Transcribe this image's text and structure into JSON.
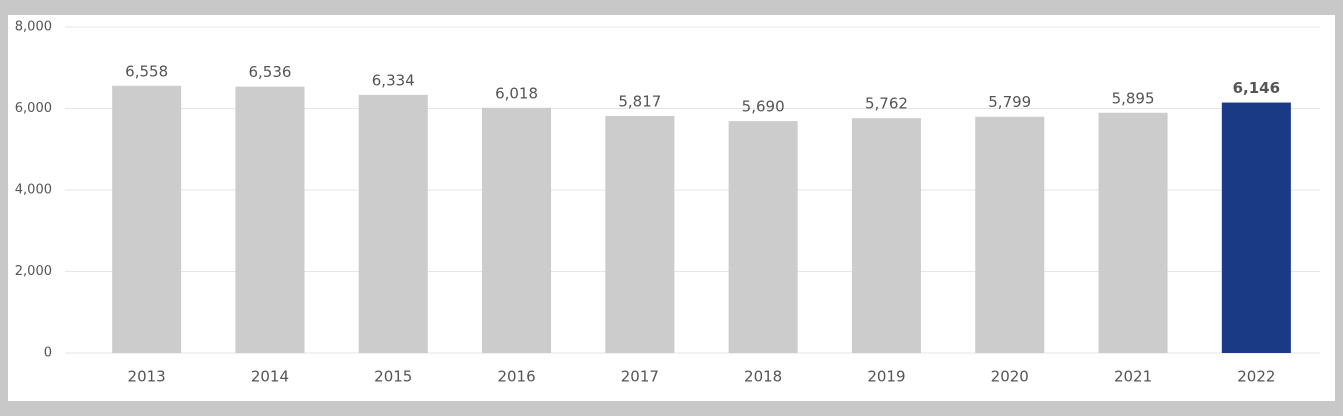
{
  "chart_data": {
    "type": "bar",
    "categories": [
      "2013",
      "2014",
      "2015",
      "2016",
      "2017",
      "2018",
      "2019",
      "2020",
      "2021",
      "2022"
    ],
    "values": [
      6558,
      6536,
      6334,
      6018,
      5817,
      5690,
      5762,
      5799,
      5895,
      6146
    ],
    "value_labels": [
      "6,558",
      "6,536",
      "6,334",
      "6,018",
      "5,817",
      "5,690",
      "5,762",
      "5,799",
      "5,895",
      "6,146"
    ],
    "colors": [
      "#cccccc",
      "#cccccc",
      "#cccccc",
      "#cccccc",
      "#cccccc",
      "#cccccc",
      "#cccccc",
      "#cccccc",
      "#cccccc",
      "#1a3a85"
    ],
    "ylim": [
      0,
      8000
    ],
    "yticks": [
      0,
      {
        "value": 2000,
        "label": "2,000"
      },
      {
        "value": 4000,
        "label": "4,000"
      },
      {
        "value": 6000,
        "label": "6,000"
      },
      {
        "value": 8000,
        "label": "8,000"
      }
    ],
    "grid": true
  }
}
